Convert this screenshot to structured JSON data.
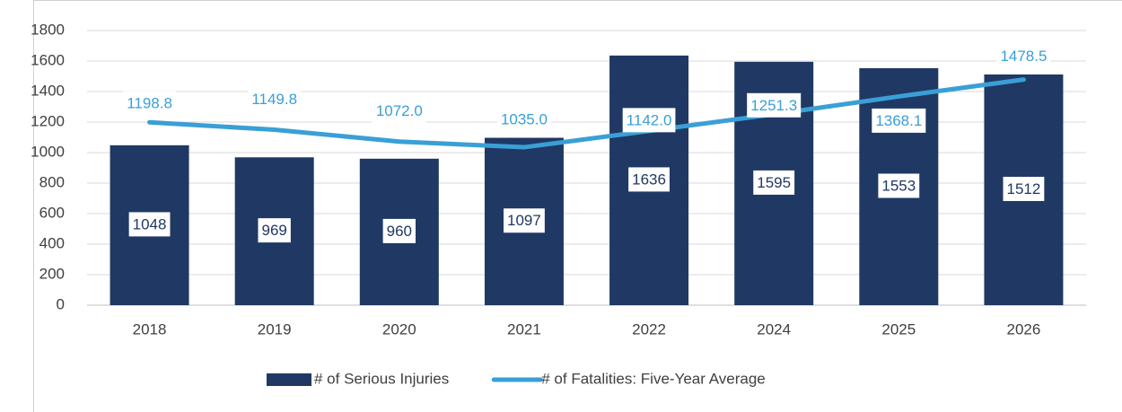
{
  "chart_data": {
    "type": "bar",
    "categories": [
      "2018",
      "2019",
      "2020",
      "2021",
      "2022",
      "2024",
      "2025",
      "2026"
    ],
    "series": [
      {
        "name": "# of Serious Injuries",
        "color": "#203864",
        "type": "bar",
        "values": [
          1048,
          969,
          960,
          1097,
          1636,
          1595,
          1553,
          1512
        ]
      },
      {
        "name": "# of Fatalities: Five-Year Average",
        "color": "#3a9fd6",
        "type": "line",
        "values": [
          1198.8,
          1149.8,
          1072.0,
          1035.0,
          1142.0,
          1251.3,
          1368.1,
          1478.5
        ],
        "value_labels": [
          "1198.8",
          "1149.8",
          "1072.0",
          "1035.0",
          "1142.0",
          "1251.3",
          "1368.1",
          "1478.5"
        ]
      }
    ],
    "ylim": [
      0,
      1800
    ],
    "yticks": [
      0,
      200,
      400,
      600,
      800,
      1000,
      1200,
      1400,
      1600,
      1800
    ],
    "grid": true,
    "legend": "bottom"
  }
}
